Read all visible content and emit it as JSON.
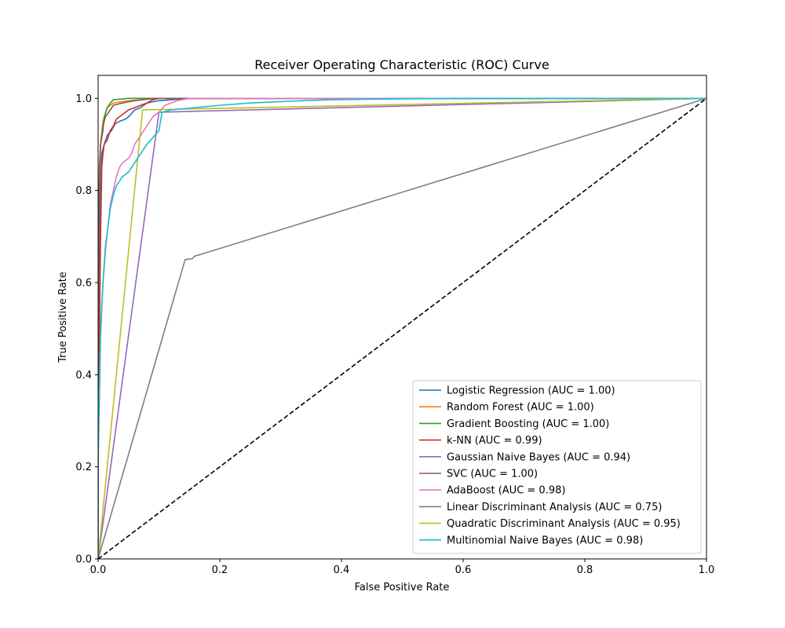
{
  "chart_data": {
    "type": "line",
    "title": "Receiver Operating Characteristic (ROC) Curve",
    "xlabel": "False Positive Rate",
    "ylabel": "True Positive Rate",
    "xlim": [
      0.0,
      1.0
    ],
    "ylim": [
      0.0,
      1.05
    ],
    "x_ticks": [
      "0.0",
      "0.2",
      "0.4",
      "0.6",
      "0.8",
      "1.0"
    ],
    "y_ticks": [
      "0.0",
      "0.2",
      "0.4",
      "0.6",
      "0.8",
      "1.0"
    ],
    "grid": false,
    "legend_position": "lower-right",
    "series": [
      {
        "name": "Logistic Regression (AUC = 1.00)",
        "color": "#1f77b4",
        "points": [
          [
            0,
            0
          ],
          [
            0,
            0.3
          ],
          [
            0.002,
            0.6
          ],
          [
            0.004,
            0.8
          ],
          [
            0.006,
            0.88
          ],
          [
            0.01,
            0.9
          ],
          [
            0.015,
            0.92
          ],
          [
            0.022,
            0.93
          ],
          [
            0.028,
            0.945
          ],
          [
            0.035,
            0.95
          ],
          [
            0.045,
            0.955
          ],
          [
            0.05,
            0.96
          ],
          [
            0.06,
            0.975
          ],
          [
            0.07,
            0.98
          ],
          [
            0.08,
            0.99
          ],
          [
            0.1,
            0.995
          ],
          [
            0.15,
            1.0
          ],
          [
            1.0,
            1.0
          ]
        ]
      },
      {
        "name": "Random Forest (AUC = 1.00)",
        "color": "#ff7f0e",
        "points": [
          [
            0,
            0
          ],
          [
            0,
            0.5
          ],
          [
            0.002,
            0.85
          ],
          [
            0.004,
            0.9
          ],
          [
            0.008,
            0.95
          ],
          [
            0.015,
            0.98
          ],
          [
            0.025,
            0.99
          ],
          [
            0.05,
            0.995
          ],
          [
            0.1,
            1.0
          ],
          [
            1.0,
            1.0
          ]
        ]
      },
      {
        "name": "Gradient Boosting (AUC = 1.00)",
        "color": "#2ca02c",
        "points": [
          [
            0,
            0
          ],
          [
            0,
            0.6
          ],
          [
            0.002,
            0.83
          ],
          [
            0.004,
            0.9
          ],
          [
            0.008,
            0.93
          ],
          [
            0.01,
            0.96
          ],
          [
            0.015,
            0.98
          ],
          [
            0.02,
            0.99
          ],
          [
            0.025,
            0.997
          ],
          [
            0.05,
            1.0
          ],
          [
            1.0,
            1.0
          ]
        ]
      },
      {
        "name": "k-NN (AUC = 0.99)",
        "color": "#d62728",
        "points": [
          [
            0,
            0
          ],
          [
            0,
            0.33
          ],
          [
            0.002,
            0.46
          ],
          [
            0.004,
            0.7
          ],
          [
            0.006,
            0.85
          ],
          [
            0.008,
            0.88
          ],
          [
            0.01,
            0.9
          ],
          [
            0.015,
            0.91
          ],
          [
            0.02,
            0.93
          ],
          [
            0.025,
            0.94
          ],
          [
            0.03,
            0.955
          ],
          [
            0.04,
            0.965
          ],
          [
            0.05,
            0.975
          ],
          [
            0.06,
            0.98
          ],
          [
            0.07,
            0.985
          ],
          [
            0.08,
            0.99
          ],
          [
            0.09,
            0.997
          ],
          [
            0.1,
            1.0
          ],
          [
            1.0,
            1.0
          ]
        ]
      },
      {
        "name": "Gaussian Naive Bayes (AUC = 0.94)",
        "color": "#9467bd",
        "points": [
          [
            0,
            0
          ],
          [
            0.1,
            0.97
          ],
          [
            1.0,
            1.0
          ]
        ]
      },
      {
        "name": "SVC (AUC = 1.00)",
        "color": "#8c564b",
        "points": [
          [
            0,
            0
          ],
          [
            0,
            0.55
          ],
          [
            0.002,
            0.8
          ],
          [
            0.004,
            0.9
          ],
          [
            0.008,
            0.94
          ],
          [
            0.012,
            0.96
          ],
          [
            0.02,
            0.975
          ],
          [
            0.025,
            0.985
          ],
          [
            0.04,
            0.99
          ],
          [
            0.06,
            0.995
          ],
          [
            0.09,
            1.0
          ],
          [
            1.0,
            1.0
          ]
        ]
      },
      {
        "name": "AdaBoost (AUC = 0.98)",
        "color": "#e377c2",
        "points": [
          [
            0,
            0
          ],
          [
            0,
            0.2
          ],
          [
            0.004,
            0.48
          ],
          [
            0.008,
            0.6
          ],
          [
            0.012,
            0.68
          ],
          [
            0.016,
            0.72
          ],
          [
            0.02,
            0.77
          ],
          [
            0.025,
            0.8
          ],
          [
            0.03,
            0.83
          ],
          [
            0.035,
            0.85
          ],
          [
            0.04,
            0.86
          ],
          [
            0.05,
            0.87
          ],
          [
            0.055,
            0.88
          ],
          [
            0.06,
            0.9
          ],
          [
            0.07,
            0.92
          ],
          [
            0.08,
            0.94
          ],
          [
            0.09,
            0.96
          ],
          [
            0.1,
            0.97
          ],
          [
            0.11,
            0.985
          ],
          [
            0.13,
            0.995
          ],
          [
            0.15,
            1.0
          ],
          [
            1.0,
            1.0
          ]
        ]
      },
      {
        "name": "Linear Discriminant Analysis (AUC = 0.75)",
        "color": "#7f7f7f",
        "points": [
          [
            0,
            0
          ],
          [
            0.143,
            0.65
          ],
          [
            0.155,
            0.652
          ],
          [
            0.158,
            0.657
          ],
          [
            1.0,
            1.0
          ]
        ]
      },
      {
        "name": "Quadratic Discriminant Analysis (AUC = 0.95)",
        "color": "#bcbd22",
        "points": [
          [
            0,
            0
          ],
          [
            0.073,
            0.975
          ],
          [
            1.0,
            1.0
          ]
        ]
      },
      {
        "name": "Multinomial Naive Bayes (AUC = 0.98)",
        "color": "#17becf",
        "points": [
          [
            0,
            0
          ],
          [
            0,
            0.22
          ],
          [
            0.004,
            0.5
          ],
          [
            0.008,
            0.6
          ],
          [
            0.012,
            0.67
          ],
          [
            0.016,
            0.72
          ],
          [
            0.02,
            0.76
          ],
          [
            0.025,
            0.79
          ],
          [
            0.03,
            0.81
          ],
          [
            0.04,
            0.83
          ],
          [
            0.05,
            0.84
          ],
          [
            0.06,
            0.86
          ],
          [
            0.07,
            0.88
          ],
          [
            0.08,
            0.9
          ],
          [
            0.09,
            0.915
          ],
          [
            0.1,
            0.93
          ],
          [
            0.105,
            0.97
          ],
          [
            0.12,
            0.975
          ],
          [
            0.2,
            0.985
          ],
          [
            0.25,
            0.99
          ],
          [
            0.3,
            0.993
          ],
          [
            0.38,
            0.997
          ],
          [
            0.5,
            0.999
          ],
          [
            0.6,
            1.0
          ],
          [
            1.0,
            1.0
          ]
        ]
      },
      {
        "name": "",
        "color": "#000000",
        "dashed": true,
        "points": [
          [
            0,
            0
          ],
          [
            1,
            1
          ]
        ]
      }
    ]
  }
}
